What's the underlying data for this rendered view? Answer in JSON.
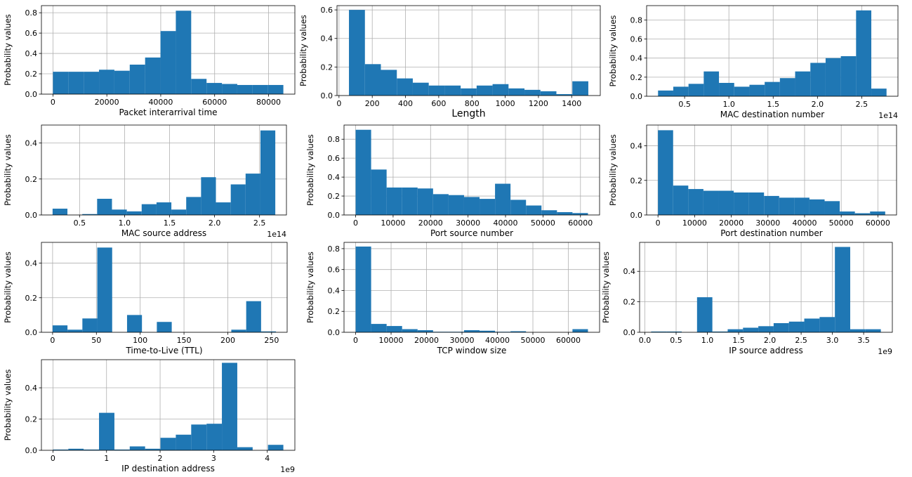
{
  "figure": {
    "bar_color": "#1f77b4",
    "grid_color": "#b0b0b0",
    "ylabel_all": "Probability values"
  },
  "chart_data": [
    {
      "type": "bar",
      "xlabel": "Packet interarrival time",
      "ylabel": "Probability values",
      "grid": true,
      "bin_edges": [
        0,
        5700,
        11400,
        17100,
        22800,
        28500,
        34200,
        39900,
        45600,
        51300,
        57000,
        62700,
        68400,
        74100,
        79800,
        85500
      ],
      "values": [
        0.22,
        0.22,
        0.22,
        0.24,
        0.23,
        0.29,
        0.36,
        0.62,
        0.82,
        0.15,
        0.11,
        0.1,
        0.09,
        0.09,
        0.09
      ],
      "xlim": [
        -4275,
        89775
      ],
      "ylim": [
        0,
        0.87
      ],
      "xticks": [
        0,
        20000,
        40000,
        60000,
        80000
      ],
      "xtick_labels": [
        "0",
        "20000",
        "40000",
        "60000",
        "80000"
      ],
      "yticks": [
        0.0,
        0.2,
        0.4,
        0.6,
        0.8
      ],
      "ytick_labels": [
        "0.0",
        "0.2",
        "0.4",
        "0.6",
        "0.8"
      ],
      "offset_text": ""
    },
    {
      "type": "bar",
      "xlabel": "Length",
      "ylabel": "Probability values",
      "grid": true,
      "bin_edges": [
        60,
        156,
        252,
        348,
        444,
        540,
        636,
        732,
        828,
        924,
        1020,
        1116,
        1212,
        1308,
        1404,
        1500
      ],
      "values": [
        0.6,
        0.22,
        0.18,
        0.12,
        0.09,
        0.07,
        0.07,
        0.05,
        0.07,
        0.08,
        0.05,
        0.04,
        0.03,
        0.01,
        0.1
      ],
      "xlim": [
        -12,
        1572
      ],
      "ylim": [
        0,
        0.63
      ],
      "xticks": [
        0,
        200,
        400,
        600,
        800,
        1000,
        1200,
        1400
      ],
      "xtick_labels": [
        "0",
        "200",
        "400",
        "600",
        "800",
        "1000",
        "1200",
        "1400"
      ],
      "yticks": [
        0.0,
        0.2,
        0.4,
        0.6
      ],
      "ytick_labels": [
        "0.0",
        "0.2",
        "0.4",
        "0.6"
      ],
      "offset_text": ""
    },
    {
      "type": "bar",
      "xlabel": "MAC destination number",
      "ylabel": "Probability values",
      "grid": true,
      "bin_edges": [
        0.2,
        0.372,
        0.544,
        0.716,
        0.888,
        1.06,
        1.232,
        1.404,
        1.576,
        1.748,
        1.92,
        2.092,
        2.264,
        2.436,
        2.608,
        2.78
      ],
      "values": [
        0.06,
        0.1,
        0.13,
        0.26,
        0.14,
        0.1,
        0.12,
        0.15,
        0.19,
        0.26,
        0.35,
        0.4,
        0.42,
        0.9,
        0.08
      ],
      "xlim": [
        0.071,
        2.909
      ],
      "ylim": [
        0,
        0.95
      ],
      "xticks": [
        0.5,
        1.0,
        1.5,
        2.0,
        2.5
      ],
      "xtick_labels": [
        "0.5",
        "1.0",
        "1.5",
        "2.0",
        "2.5"
      ],
      "yticks": [
        0.0,
        0.2,
        0.4,
        0.6,
        0.8
      ],
      "ytick_labels": [
        "0.0",
        "0.2",
        "0.4",
        "0.6",
        "0.8"
      ],
      "offset_text": "1e14"
    },
    {
      "type": "bar",
      "xlabel": "MAC source address",
      "ylabel": "Probability values",
      "grid": true,
      "bin_edges": [
        0.2,
        0.365,
        0.53,
        0.695,
        0.86,
        1.025,
        1.19,
        1.355,
        1.52,
        1.685,
        1.85,
        2.015,
        2.18,
        2.345,
        2.51,
        2.675
      ],
      "values": [
        0.035,
        0.0,
        0.005,
        0.09,
        0.03,
        0.02,
        0.06,
        0.07,
        0.03,
        0.1,
        0.21,
        0.07,
        0.17,
        0.23,
        0.47
      ],
      "xlim": [
        0.076,
        2.799
      ],
      "ylim": [
        0,
        0.5
      ],
      "xticks": [
        0.5,
        1.0,
        1.5,
        2.0,
        2.5
      ],
      "xtick_labels": [
        "0.5",
        "1.0",
        "1.5",
        "2.0",
        "2.5"
      ],
      "yticks": [
        0.0,
        0.2,
        0.4
      ],
      "ytick_labels": [
        "0.0",
        "0.2",
        "0.4"
      ],
      "offset_text": "1e14"
    },
    {
      "type": "bar",
      "xlabel": "Port source number",
      "ylabel": "Probability values",
      "grid": true,
      "bin_edges": [
        0,
        4133,
        8267,
        12400,
        16533,
        20667,
        24800,
        28933,
        33067,
        37200,
        41333,
        45467,
        49600,
        53733,
        57867,
        62000
      ],
      "values": [
        0.9,
        0.48,
        0.29,
        0.29,
        0.28,
        0.22,
        0.21,
        0.19,
        0.17,
        0.33,
        0.16,
        0.1,
        0.05,
        0.03,
        0.02
      ],
      "xlim": [
        -3100,
        65100
      ],
      "ylim": [
        0,
        0.95
      ],
      "xticks": [
        0,
        10000,
        20000,
        30000,
        40000,
        50000,
        60000
      ],
      "xtick_labels": [
        "0",
        "10000",
        "20000",
        "30000",
        "40000",
        "50000",
        "60000"
      ],
      "yticks": [
        0.0,
        0.2,
        0.4,
        0.6,
        0.8
      ],
      "ytick_labels": [
        "0.0",
        "0.2",
        "0.4",
        "0.6",
        "0.8"
      ],
      "offset_text": ""
    },
    {
      "type": "bar",
      "xlabel": "Port destination number",
      "ylabel": "Probability values",
      "grid": true,
      "bin_edges": [
        0,
        4133,
        8267,
        12400,
        16533,
        20667,
        24800,
        28933,
        33067,
        37200,
        41333,
        45467,
        49600,
        53733,
        57867,
        62000
      ],
      "values": [
        0.49,
        0.17,
        0.15,
        0.14,
        0.14,
        0.13,
        0.13,
        0.11,
        0.1,
        0.1,
        0.09,
        0.08,
        0.02,
        0.01,
        0.02
      ],
      "xlim": [
        -3100,
        65100
      ],
      "ylim": [
        0,
        0.52
      ],
      "xticks": [
        0,
        10000,
        20000,
        30000,
        40000,
        50000,
        60000
      ],
      "xtick_labels": [
        "0",
        "10000",
        "20000",
        "30000",
        "40000",
        "50000",
        "60000"
      ],
      "yticks": [
        0.0,
        0.2,
        0.4
      ],
      "ytick_labels": [
        "0.0",
        "0.2",
        "0.4"
      ],
      "offset_text": ""
    },
    {
      "type": "bar",
      "xlabel": "Time-to-Live (TTL)",
      "ylabel": "Probability values",
      "grid": true,
      "bin_edges": [
        0,
        17,
        34,
        51,
        68,
        85,
        102,
        119,
        136,
        153,
        170,
        187,
        204,
        221,
        238,
        255
      ],
      "values": [
        0.04,
        0.015,
        0.08,
        0.49,
        0.0,
        0.1,
        0.0,
        0.06,
        0.0,
        0.0,
        0.0,
        0.0,
        0.015,
        0.18,
        0.005
      ],
      "xlim": [
        -12.75,
        267.75
      ],
      "ylim": [
        0,
        0.52
      ],
      "xticks": [
        0,
        50,
        100,
        150,
        200,
        250
      ],
      "xtick_labels": [
        "0",
        "50",
        "100",
        "150",
        "200",
        "250"
      ],
      "yticks": [
        0.0,
        0.2,
        0.4
      ],
      "ytick_labels": [
        "0.0",
        "0.2",
        "0.4"
      ],
      "offset_text": ""
    },
    {
      "type": "bar",
      "xlabel": "TCP window size",
      "ylabel": "Probability values",
      "grid": true,
      "bin_edges": [
        0,
        4369,
        8738,
        13107,
        17476,
        21845,
        26214,
        30583,
        34952,
        39321,
        43690,
        48059,
        52428,
        56797,
        61166,
        65535
      ],
      "values": [
        0.82,
        0.08,
        0.06,
        0.03,
        0.02,
        0.005,
        0.005,
        0.02,
        0.015,
        0.005,
        0.01,
        0.0,
        0.0,
        0.0,
        0.03
      ],
      "xlim": [
        -3277,
        68812
      ],
      "ylim": [
        0,
        0.86
      ],
      "xticks": [
        0,
        10000,
        20000,
        30000,
        40000,
        50000,
        60000
      ],
      "xtick_labels": [
        "0",
        "10000",
        "20000",
        "30000",
        "40000",
        "50000",
        "60000"
      ],
      "yticks": [
        0.0,
        0.2,
        0.4,
        0.6,
        0.8
      ],
      "ytick_labels": [
        "0.0",
        "0.2",
        "0.4",
        "0.6",
        "0.8"
      ],
      "offset_text": ""
    },
    {
      "type": "bar",
      "xlabel": "IP source address",
      "ylabel": "Probability values",
      "grid": true,
      "bin_edges": [
        0.1,
        0.345,
        0.59,
        0.835,
        1.08,
        1.325,
        1.57,
        1.815,
        2.06,
        2.305,
        2.55,
        2.795,
        3.04,
        3.285,
        3.53,
        3.775
      ],
      "values": [
        0.005,
        0.005,
        0.0,
        0.23,
        0.005,
        0.02,
        0.03,
        0.04,
        0.06,
        0.07,
        0.09,
        0.1,
        0.56,
        0.02,
        0.02
      ],
      "xlim": [
        -0.084,
        3.959
      ],
      "ylim": [
        0,
        0.59
      ],
      "xticks": [
        0.0,
        0.5,
        1.0,
        1.5,
        2.0,
        2.5,
        3.0,
        3.5
      ],
      "xtick_labels": [
        "0.0",
        "0.5",
        "1.0",
        "1.5",
        "2.0",
        "2.5",
        "3.0",
        "3.5"
      ],
      "yticks": [
        0.0,
        0.2,
        0.4
      ],
      "ytick_labels": [
        "0.0",
        "0.2",
        "0.4"
      ],
      "offset_text": "1e9"
    },
    {
      "type": "bar",
      "xlabel": "IP destination address",
      "ylabel": "Probability values",
      "grid": true,
      "bin_edges": [
        0.0,
        0.287,
        0.573,
        0.86,
        1.147,
        1.433,
        1.72,
        2.007,
        2.293,
        2.58,
        2.867,
        3.153,
        3.44,
        3.727,
        4.013,
        4.3
      ],
      "values": [
        0.005,
        0.01,
        0.005,
        0.24,
        0.005,
        0.025,
        0.01,
        0.08,
        0.1,
        0.165,
        0.17,
        0.56,
        0.02,
        0.0,
        0.035
      ],
      "xlim": [
        -0.215,
        4.515
      ],
      "ylim": [
        0,
        0.58
      ],
      "xticks": [
        0,
        1,
        2,
        3,
        4
      ],
      "xtick_labels": [
        "0",
        "1",
        "2",
        "3",
        "4"
      ],
      "yticks": [
        0.0,
        0.2,
        0.4
      ],
      "ytick_labels": [
        "0.0",
        "0.2",
        "0.4"
      ],
      "offset_text": "1e9"
    }
  ]
}
